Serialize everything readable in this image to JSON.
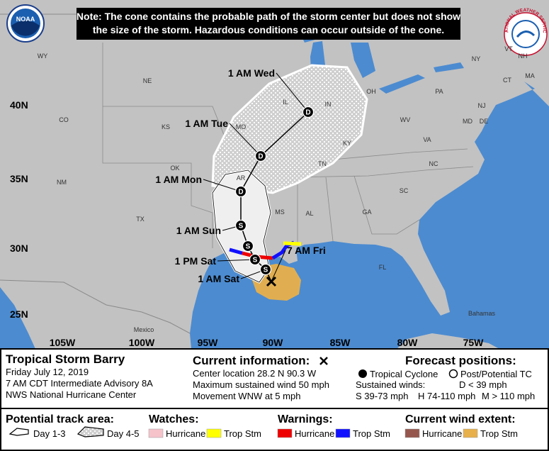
{
  "note": [
    "Note: The cone contains the probable path of the storm center but does not show",
    "the size of the storm. Hazardous conditions can occur outside of the cone."
  ],
  "logos": {
    "left": "NOAA",
    "right": "NATIONAL WEATHER SERVICE"
  },
  "map": {
    "latitudes": [
      "40N",
      "35N",
      "30N",
      "25N"
    ],
    "longitudes": [
      "105W",
      "100W",
      "95W",
      "90W",
      "85W",
      "80W",
      "75W"
    ],
    "states": [
      "WY",
      "NE",
      "CO",
      "KS",
      "OK",
      "NM",
      "TX",
      "MO",
      "AR",
      "IL",
      "IN",
      "OH",
      "KY",
      "TN",
      "MS",
      "AL",
      "GA",
      "SC",
      "NC",
      "VA",
      "WV",
      "PA",
      "NY",
      "VT",
      "NH",
      "MA",
      "CT",
      "NJ",
      "DE",
      "MD",
      "FL"
    ],
    "countries": [
      "Mexico",
      "Bahamas"
    ],
    "track": [
      {
        "label": "7 AM Fri",
        "symbol": null
      },
      {
        "label": "1 AM Sat",
        "symbol": "S"
      },
      {
        "label": "1 PM Sat",
        "symbol": "S"
      },
      {
        "label": null,
        "symbol": "S"
      },
      {
        "label": "1 AM Sun",
        "symbol": "S"
      },
      {
        "label": "1 AM Mon",
        "symbol": "D"
      },
      {
        "label": "1 AM Tue",
        "symbol": "D"
      },
      {
        "label": "1 AM Wed",
        "symbol": "D"
      }
    ]
  },
  "info": {
    "storm": {
      "name": "Tropical Storm Barry",
      "lines": [
        "Friday July 12, 2019",
        "7 AM CDT Intermediate Advisory 8A",
        "NWS National Hurricane Center"
      ]
    },
    "current": {
      "heading": "Current information:",
      "lines": [
        "Center location 28.2 N 90.3 W",
        "Maximum sustained wind 50 mph",
        "Movement WNW at 5 mph"
      ]
    },
    "forecast": {
      "heading": "Forecast positions:",
      "tropical": "Tropical Cyclone",
      "post": "Post/Potential TC",
      "winds_heading": "Sustained winds:",
      "winds": [
        "D < 39 mph",
        "S 39-73 mph",
        "H 74-110 mph",
        "M > 110 mph"
      ]
    }
  },
  "legend": {
    "track": {
      "heading": "Potential track area:",
      "items": [
        "Day 1-3",
        "Day 4-5"
      ]
    },
    "watches": {
      "heading": "Watches:",
      "items": [
        {
          "label": "Hurricane",
          "color": "#f6c3cb"
        },
        {
          "label": "Trop Stm",
          "color": "#ffff00"
        }
      ]
    },
    "warnings": {
      "heading": "Warnings:",
      "items": [
        {
          "label": "Hurricane",
          "color": "#ee0000"
        },
        {
          "label": "Trop Stm",
          "color": "#1010ff"
        }
      ]
    },
    "wind": {
      "heading": "Current wind extent:",
      "items": [
        {
          "label": "Hurricane",
          "color": "#95574d"
        },
        {
          "label": "Trop Stm",
          "color": "#e8b04a"
        }
      ]
    }
  }
}
